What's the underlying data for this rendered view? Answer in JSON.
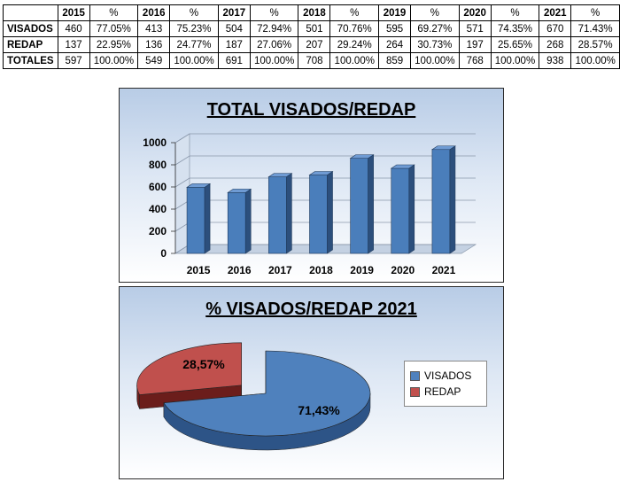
{
  "table": {
    "headers": [
      "",
      "2015",
      "%",
      "2016",
      "%",
      "2017",
      "%",
      "2018",
      "%",
      "2019",
      "%",
      "2020",
      "%",
      "2021",
      "%"
    ],
    "rows": [
      {
        "label": "VISADOS",
        "cells": [
          "460",
          "77.05%",
          "413",
          "75.23%",
          "504",
          "72.94%",
          "501",
          "70.76%",
          "595",
          "69.27%",
          "571",
          "74.35%",
          "670",
          "71.43%"
        ]
      },
      {
        "label": "REDAP",
        "cells": [
          "137",
          "22.95%",
          "136",
          "24.77%",
          "187",
          "27.06%",
          "207",
          "29.24%",
          "264",
          "30.73%",
          "197",
          "25.65%",
          "268",
          "28.57%"
        ]
      },
      {
        "label": "TOTALES",
        "cells": [
          "597",
          "100.00%",
          "549",
          "100.00%",
          "691",
          "100.00%",
          "708",
          "100.00%",
          "859",
          "100.00%",
          "768",
          "100.00%",
          "938",
          "100.00%"
        ]
      }
    ]
  },
  "chart_data": [
    {
      "type": "bar",
      "title": "TOTAL VISADOS/REDAP",
      "categories": [
        "2015",
        "2016",
        "2017",
        "2018",
        "2019",
        "2020",
        "2021"
      ],
      "values": [
        597,
        549,
        691,
        708,
        859,
        768,
        938
      ],
      "yticks": [
        "0",
        "200",
        "400",
        "600",
        "800",
        "1000"
      ],
      "ylim": [
        0,
        1000
      ],
      "grid": true,
      "bar_style": "3d",
      "colors": {
        "bar": "#4a7ebb",
        "bar_side": "#2c4f7c",
        "bar_top": "#6f9bd3"
      }
    },
    {
      "type": "pie",
      "title": "% VISADOS/REDAP 2021",
      "labels": [
        "VISADOS",
        "REDAP"
      ],
      "values": [
        71.43,
        28.57
      ],
      "data_labels": [
        "71,43%",
        "28,57%"
      ],
      "legend_position": "right",
      "pie_style": "3d-exploded",
      "colors": [
        "#4f81bd",
        "#c0504d"
      ],
      "dark_colors": [
        "#2d5487",
        "#6b1d1b"
      ]
    }
  ]
}
